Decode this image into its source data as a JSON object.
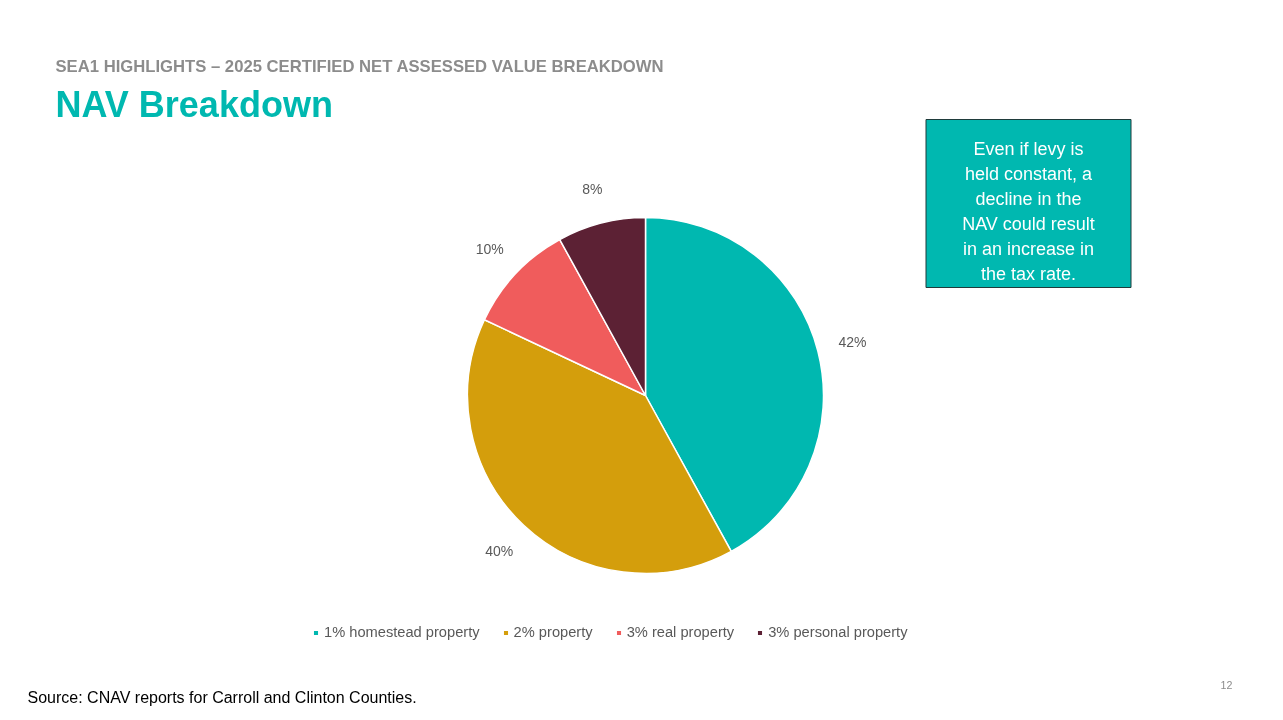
{
  "chart_data": {
    "type": "pie",
    "title": "NAV Breakdown",
    "subtitle": "SEA1 HIGHLIGHTS – 2025 CERTIFIED NET ASSESSED VALUE BREAKDOWN",
    "categories": [
      "1% homestead property",
      "2% property",
      "3% real property",
      "3% personal property"
    ],
    "values": [
      42,
      40,
      10,
      8
    ],
    "colors": [
      "#00b8b0",
      "#d49e0c",
      "#f05c5c",
      "#5c2134"
    ],
    "value_labels": [
      "42%",
      "40%",
      "10%",
      "8%"
    ],
    "legend": "bottom",
    "annotations": [
      "Even if levy is held constant, a decline in the NAV could result in an increase in the tax rate.",
      "Source: CNAV reports for Carroll and Clinton Counties.",
      "12"
    ]
  }
}
